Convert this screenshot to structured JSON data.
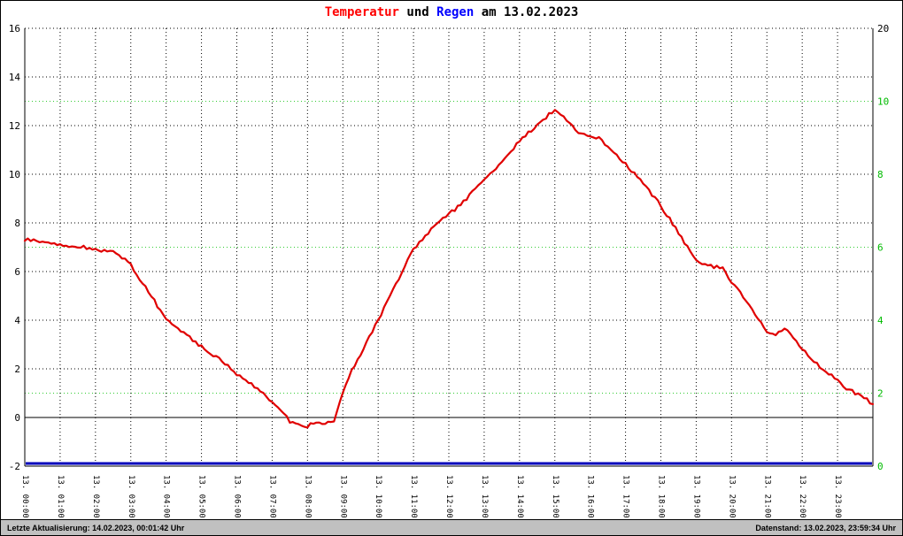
{
  "title": {
    "temperatur": "Temperatur",
    "und": " und ",
    "regen": "Regen",
    "date_suffix": " am 13.02.2023"
  },
  "footer": {
    "left": "Letzte Aktualisierung: 14.02.2023, 00:01:42 Uhr",
    "right": "Datenstand: 13.02.2023, 23:59:34 Uhr"
  },
  "colors": {
    "temperature_line": "#e00000",
    "rain_line": "#0000bb",
    "title_temperatur": "#ff0000",
    "title_regen": "#0000ff",
    "grid_black": "#000000",
    "grid_green": "#33cc33",
    "right_axis_labels": "#00bb00",
    "footer_bg": "#c0c0c0"
  },
  "chart_data": {
    "type": "line",
    "title": "Temperatur und Regen am 13.02.2023",
    "grid": true,
    "x_tick_labels": [
      "13. 00:00",
      "13. 01:00",
      "13. 02:00",
      "13. 03:00",
      "13. 04:00",
      "13. 05:00",
      "13. 06:00",
      "13. 07:00",
      "13. 08:00",
      "13. 09:00",
      "13. 10:00",
      "13. 11:00",
      "13. 12:00",
      "13. 13:00",
      "13. 14:00",
      "13. 15:00",
      "13. 16:00",
      "13. 17:00",
      "13. 18:00",
      "13. 19:00",
      "13. 20:00",
      "13. 21:00",
      "13. 22:00",
      "13. 23:00"
    ],
    "left_axis": {
      "tick_labels": [
        "16",
        "14",
        "12",
        "10",
        "8",
        "6",
        "4",
        "2",
        "0",
        "-2"
      ],
      "range": [
        -2,
        16
      ]
    },
    "right_axis": {
      "tick_labels": [
        "20",
        "10",
        "8",
        "6",
        "4",
        "2",
        "0"
      ]
    },
    "series": [
      {
        "name": "Temperatur",
        "color": "#e00000",
        "axis": "left",
        "interval_minutes": 15,
        "start": "13. 00:00",
        "values": [
          7.3,
          7.28,
          7.22,
          7.18,
          7.1,
          7.05,
          7.02,
          6.98,
          6.9,
          6.85,
          6.8,
          6.6,
          6.25,
          5.7,
          5.2,
          4.6,
          4.1,
          3.8,
          3.5,
          3.2,
          2.9,
          2.65,
          2.4,
          2.1,
          1.8,
          1.55,
          1.3,
          1.0,
          0.65,
          0.25,
          -0.15,
          -0.3,
          -0.35,
          -0.2,
          -0.25,
          -0.1,
          1.0,
          1.9,
          2.6,
          3.3,
          4.0,
          4.75,
          5.5,
          6.2,
          6.9,
          7.35,
          7.7,
          8.05,
          8.35,
          8.65,
          9.0,
          9.4,
          9.8,
          10.15,
          10.5,
          10.95,
          11.35,
          11.7,
          12.0,
          12.35,
          12.65,
          12.35,
          11.95,
          11.65,
          11.55,
          11.5,
          11.15,
          10.8,
          10.4,
          10.0,
          9.6,
          9.15,
          8.7,
          8.15,
          7.6,
          7.0,
          6.5,
          6.25,
          6.2,
          6.15,
          5.6,
          5.1,
          4.6,
          4.1,
          3.5,
          3.4,
          3.65,
          3.3,
          2.8,
          2.45,
          2.1,
          1.8,
          1.5,
          1.2,
          1.0,
          0.8,
          0.55
        ]
      },
      {
        "name": "Regen",
        "color": "#0000bb",
        "axis": "right",
        "constant_value": 0
      }
    ]
  }
}
